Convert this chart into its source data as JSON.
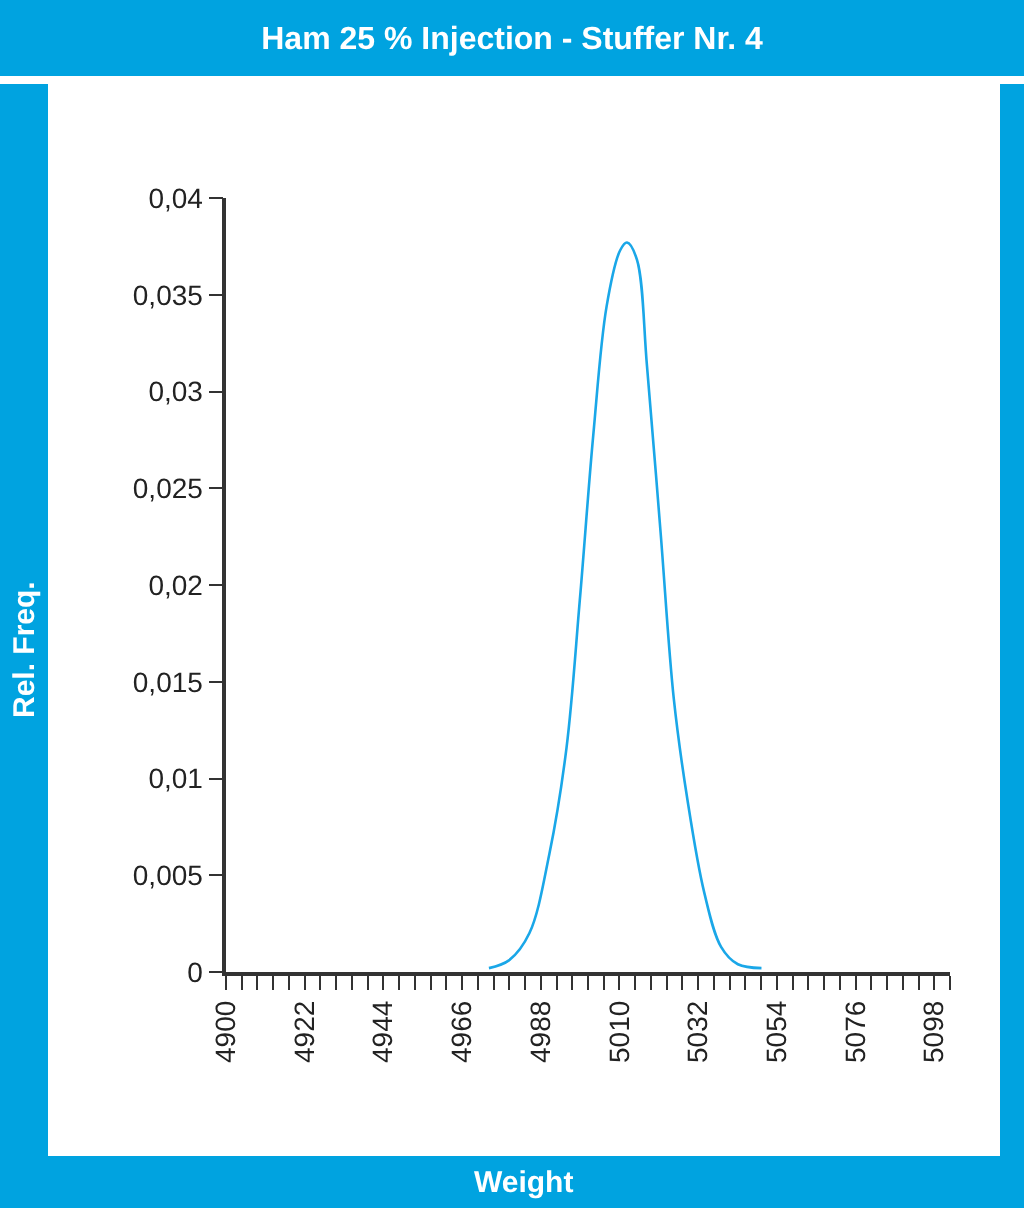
{
  "chart_data": {
    "type": "line",
    "title": "Ham 25 % Injection - Stuffer Nr. 4",
    "xlabel": "Weight",
    "ylabel": "Rel. Freq.",
    "x": [
      4973.5,
      4979.1,
      4984.8,
      4990.4,
      4995.2,
      4998.9,
      5002.7,
      5006.4,
      5010.2,
      5012.1,
      5014.9,
      5017.7,
      5021.5,
      5025.2,
      5029,
      5033.7,
      5038.4,
      5043.1,
      5049.7
    ],
    "series": [
      {
        "color": "#1aa7e8",
        "values": [
          0.0002,
          0.0006,
          0.002,
          0.0061,
          0.0116,
          0.0192,
          0.0278,
          0.0344,
          0.0373,
          0.0377,
          0.0368,
          0.0313,
          0.0227,
          0.0141,
          0.0089,
          0.0041,
          0.0013,
          0.0004,
          0.0002
        ]
      }
    ],
    "xlim": [
      4900,
      5102.4
    ],
    "xticks": [
      4900,
      {
        "value": 4904.4,
        "label": null
      },
      {
        "value": 4908.8,
        "label": null
      },
      {
        "value": 4913.2,
        "label": null
      },
      {
        "value": 4917.6,
        "label": null
      },
      4922,
      {
        "value": 4926.4,
        "label": null
      },
      {
        "value": 4930.8,
        "label": null
      },
      {
        "value": 4935.2,
        "label": null
      },
      {
        "value": 4939.6,
        "label": null
      },
      4944,
      {
        "value": 4948.4,
        "label": null
      },
      {
        "value": 4952.8,
        "label": null
      },
      {
        "value": 4957.2,
        "label": null
      },
      {
        "value": 4961.6,
        "label": null
      },
      4966,
      {
        "value": 4970.4,
        "label": null
      },
      {
        "value": 4974.8,
        "label": null
      },
      {
        "value": 4979.2,
        "label": null
      },
      {
        "value": 4983.6,
        "label": null
      },
      4988,
      {
        "value": 4992.4,
        "label": null
      },
      {
        "value": 4996.8,
        "label": null
      },
      {
        "value": 5001.2,
        "label": null
      },
      {
        "value": 5005.6,
        "label": null
      },
      5010,
      {
        "value": 5014.4,
        "label": null
      },
      {
        "value": 5018.8,
        "label": null
      },
      {
        "value": 5023.2,
        "label": null
      },
      {
        "value": 5027.6,
        "label": null
      },
      5032,
      {
        "value": 5036.4,
        "label": null
      },
      {
        "value": 5040.8,
        "label": null
      },
      {
        "value": 5045.2,
        "label": null
      },
      {
        "value": 5049.6,
        "label": null
      },
      5054,
      {
        "value": 5058.4,
        "label": null
      },
      {
        "value": 5062.8,
        "label": null
      },
      {
        "value": 5067.2,
        "label": null
      },
      {
        "value": 5071.6,
        "label": null
      },
      5076,
      {
        "value": 5080.4,
        "label": null
      },
      {
        "value": 5084.8,
        "label": null
      },
      {
        "value": 5089.2,
        "label": null
      },
      {
        "value": 5093.6,
        "label": null
      },
      5098,
      {
        "value": 5102.4,
        "label": null
      }
    ],
    "ylim": [
      0,
      0.04
    ],
    "yticks": [
      {
        "value": 0,
        "label": "0"
      },
      {
        "value": 0.005,
        "label": "0,005"
      },
      {
        "value": 0.01,
        "label": "0,01"
      },
      {
        "value": 0.015,
        "label": "0,015"
      },
      {
        "value": 0.02,
        "label": "0,02"
      },
      {
        "value": 0.025,
        "label": "0,025"
      },
      {
        "value": 0.03,
        "label": "0,03"
      },
      {
        "value": 0.035,
        "label": "0,035"
      },
      {
        "value": 0.04,
        "label": "0,04"
      }
    ],
    "legend": false,
    "marker": "none",
    "line_style": "solid"
  }
}
